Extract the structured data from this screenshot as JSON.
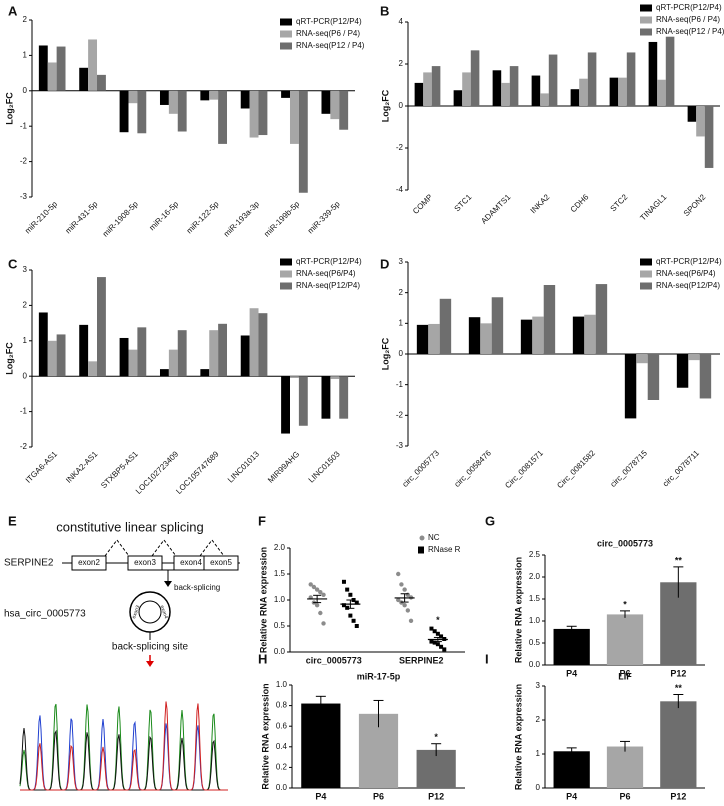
{
  "chart_data": [
    {
      "panel": "A",
      "type": "bar",
      "ylabel": "Log₂FC",
      "categories": [
        "miR-210-5p",
        "miR-431-5p",
        "miR-1908-5p",
        "miR-16-5p",
        "miR-122-5p",
        "miR-193a-3p",
        "miR-199b-5p",
        "miR-339-5p"
      ],
      "series": [
        {
          "name": "qRT-PCR(P12/P4)",
          "color": "#000000",
          "values": [
            1.28,
            0.65,
            -1.17,
            -0.4,
            -0.27,
            -0.5,
            -0.2,
            -0.65
          ]
        },
        {
          "name": "RNA-seq(P6 / P4)",
          "color": "#a6a6a6",
          "values": [
            0.8,
            1.45,
            -0.35,
            -0.65,
            -0.25,
            -1.32,
            -1.5,
            -0.8
          ]
        },
        {
          "name": "RNA-seq(P12 / P4)",
          "color": "#6e6e6e",
          "values": [
            1.25,
            0.45,
            -1.2,
            -1.15,
            -1.5,
            -1.25,
            -2.88,
            -1.1
          ]
        }
      ],
      "ylim": [
        -3,
        2
      ],
      "yticks": [
        -3,
        -2,
        -1,
        0,
        1,
        2
      ],
      "legend": "upper right"
    },
    {
      "panel": "B",
      "type": "bar",
      "ylabel": "Log₂FC",
      "categories": [
        "COMP",
        "STC1",
        "ADAMTS1",
        "INKA2",
        "CDH6",
        "STC2",
        "TINAGL1",
        "SPON2"
      ],
      "series": [
        {
          "name": "qRT-PCR(P12/P4)",
          "color": "#000000",
          "values": [
            1.1,
            0.75,
            1.7,
            1.45,
            0.8,
            1.35,
            3.05,
            -0.75
          ]
        },
        {
          "name": "RNA-seq(P6 / P4)",
          "color": "#a6a6a6",
          "values": [
            1.6,
            1.6,
            1.1,
            0.6,
            1.3,
            1.35,
            1.25,
            -1.45
          ]
        },
        {
          "name": "RNA-seq(P12 / P4)",
          "color": "#6e6e6e",
          "values": [
            1.9,
            2.65,
            1.9,
            2.45,
            2.55,
            2.55,
            3.3,
            -2.95
          ]
        }
      ],
      "ylim": [
        -4,
        4
      ],
      "yticks": [
        -4,
        -2,
        0,
        2,
        4
      ],
      "legend": "upper right"
    },
    {
      "panel": "C",
      "type": "bar",
      "ylabel": "Log₂FC",
      "categories": [
        "ITGA6-AS1",
        "INKA2-AS1",
        "STXBP5-AS1",
        "LOC102723409",
        "LOC105747689",
        "LINC01013",
        "MIR99AHG",
        "LINC01503"
      ],
      "series": [
        {
          "name": "qRT-PCR(P12/P4)",
          "color": "#000000",
          "values": [
            1.8,
            1.45,
            1.08,
            0.2,
            0.2,
            1.15,
            -1.62,
            -1.2
          ]
        },
        {
          "name": "RNA-seq(P6/P4)",
          "color": "#a6a6a6",
          "values": [
            1.0,
            0.42,
            0.75,
            0.75,
            1.3,
            1.92,
            -0.05,
            -0.08
          ]
        },
        {
          "name": "RNA-seq(P12/P4)",
          "color": "#6e6e6e",
          "values": [
            1.18,
            2.8,
            1.38,
            1.3,
            1.48,
            1.78,
            -1.4,
            -1.2
          ]
        }
      ],
      "ylim": [
        -2,
        3
      ],
      "yticks": [
        -2,
        -1,
        0,
        1,
        2,
        3
      ],
      "legend": "upper right"
    },
    {
      "panel": "D",
      "type": "bar",
      "ylabel": "Log₂FC",
      "categories": [
        "circ_0005773",
        "circ_0058476",
        "Circ_0081571",
        "Circ_0081582",
        "circ_0078715",
        "circ_0078711"
      ],
      "series": [
        {
          "name": "qRT-PCR(P12/P4)",
          "color": "#000000",
          "values": [
            0.95,
            1.2,
            1.12,
            1.22,
            -2.1,
            -1.1
          ]
        },
        {
          "name": "RNA-seq(P6/P4)",
          "color": "#a6a6a6",
          "values": [
            0.98,
            1.0,
            1.22,
            1.28,
            -0.3,
            -0.2
          ]
        },
        {
          "name": "RNA-seq(P12/P4)",
          "color": "#6e6e6e",
          "values": [
            1.8,
            1.85,
            2.25,
            2.28,
            -1.5,
            -1.45
          ]
        }
      ],
      "ylim": [
        -3,
        3
      ],
      "yticks": [
        -3,
        -2,
        -1,
        0,
        1,
        2,
        3
      ],
      "legend": "upper right"
    },
    {
      "panel": "F",
      "type": "dot",
      "ylabel": "Relative RNA expression",
      "categories": [
        "circ_0005773",
        "SERPINE2"
      ],
      "series": [
        {
          "name": "NC",
          "color": "#8c8c8c",
          "marker": "circle",
          "values": [
            [
              1.3,
              1.25,
              1.2,
              1.15,
              1.1,
              1.05,
              0.95,
              0.9,
              0.75,
              0.55
            ],
            [
              1.5,
              1.3,
              1.2,
              1.1,
              1.05,
              1.0,
              0.95,
              0.9,
              0.8,
              0.6
            ]
          ],
          "mean": [
            1.02,
            1.04
          ],
          "error": [
            0.07,
            0.08
          ]
        },
        {
          "name": "RNase R",
          "color": "#000000",
          "marker": "square",
          "values": [
            [
              1.35,
              1.2,
              1.1,
              1.0,
              0.95,
              0.9,
              0.85,
              0.7,
              0.6,
              0.5
            ],
            [
              0.45,
              0.4,
              0.35,
              0.3,
              0.25,
              0.2,
              0.18,
              0.15,
              0.1,
              0.05
            ]
          ],
          "mean": [
            0.92,
            0.24
          ],
          "error": [
            0.08,
            0.04
          ]
        }
      ],
      "annotations": [
        null,
        "*"
      ],
      "ylim": [
        0,
        2
      ],
      "yticks": [
        {
          "value": 0,
          "label": "0.0"
        },
        0.5,
        {
          "value": 1,
          "label": "1.0"
        },
        1.5,
        {
          "value": 2,
          "label": "2.0"
        }
      ],
      "legend": "upper right"
    },
    {
      "panel": "G",
      "type": "bar",
      "title": "circ_0005773",
      "ylabel": "Relative RNA expression",
      "categories": [
        "P4",
        "P6",
        "P12"
      ],
      "values": [
        0.82,
        1.15,
        1.88
      ],
      "errors": [
        0.06,
        0.08,
        0.35
      ],
      "colors": [
        "#000000",
        "#a6a6a6",
        "#6e6e6e"
      ],
      "annotations": [
        null,
        "*",
        "**"
      ],
      "ylim": [
        0,
        2.5
      ],
      "yticks": [
        {
          "value": 0,
          "label": "0.0"
        },
        0.5,
        {
          "value": 1,
          "label": "1.0"
        },
        1.5,
        {
          "value": 2,
          "label": "2.0"
        },
        2.5
      ]
    },
    {
      "panel": "H",
      "type": "bar",
      "title": "miR-17-5p",
      "ylabel": "Relative RNA expression",
      "categories": [
        "P4",
        "P6",
        "P12"
      ],
      "values": [
        0.82,
        0.72,
        0.37
      ],
      "errors": [
        0.07,
        0.13,
        0.06
      ],
      "colors": [
        "#000000",
        "#a6a6a6",
        "#6e6e6e"
      ],
      "annotations": [
        null,
        null,
        "*"
      ],
      "ylim": [
        0,
        1
      ],
      "yticks": [
        {
          "value": 0,
          "label": "0.0"
        },
        0.2,
        0.4,
        0.6,
        0.8,
        {
          "value": 1,
          "label": "1.0"
        }
      ]
    },
    {
      "panel": "I",
      "type": "bar",
      "title": "LIF",
      "ylabel": "Relative RNA expression",
      "categories": [
        "P4",
        "P6",
        "P12"
      ],
      "values": [
        1.08,
        1.22,
        2.55
      ],
      "errors": [
        0.1,
        0.15,
        0.2
      ],
      "colors": [
        "#000000",
        "#a6a6a6",
        "#6e6e6e"
      ],
      "annotations": [
        null,
        null,
        "**"
      ],
      "ylim": [
        0,
        3
      ],
      "yticks": [
        0,
        1,
        2,
        3
      ]
    }
  ],
  "diagram": {
    "panel": "E",
    "title": "constitutive linear splicing",
    "gene": "SERPINE2",
    "exons": [
      "exon2",
      "exon3",
      "exon4",
      "exon5"
    ],
    "circle_exons": [
      "exon3",
      "exon4"
    ],
    "back_splicing": "back-splicing",
    "circ_name": "hsa_circ_0005773",
    "site": "back-splicing site"
  }
}
